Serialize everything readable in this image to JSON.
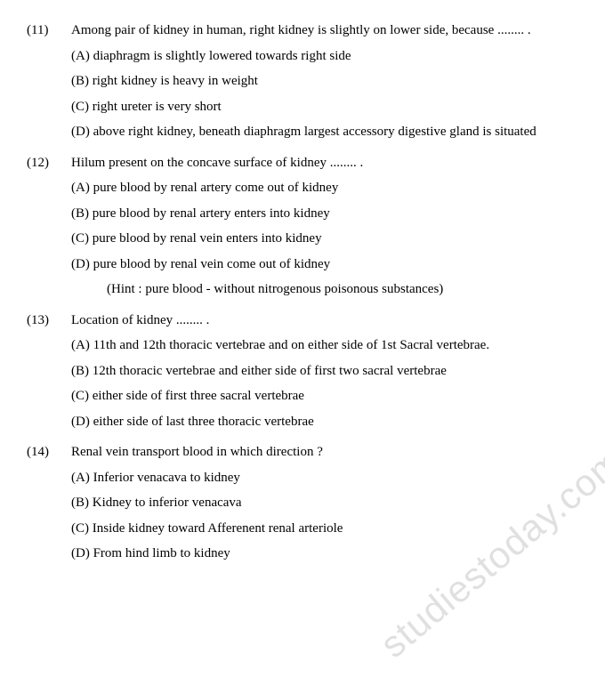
{
  "watermark": "studiestoday.com",
  "questions": [
    {
      "num": "(11)",
      "text": "Among pair of kidney in human, right kidney is slightly on lower side, because ........ .",
      "options": [
        "(A) diaphragm is slightly lowered towards right side",
        "(B) right kidney is heavy in weight",
        "(C) right ureter is very short",
        "(D) above right kidney, beneath diaphragm largest accessory digestive gland is situated"
      ]
    },
    {
      "num": "(12)",
      "text": "Hilum present on the concave surface of kidney ........ .",
      "options": [
        "(A) pure blood by renal artery come out of kidney",
        "(B) pure blood by renal artery enters into kidney",
        "(C) pure blood by renal vein enters into kidney",
        "(D) pure blood by renal vein come out of kidney"
      ],
      "hint": "(Hint : pure blood - without nitrogenous poisonous substances)"
    },
    {
      "num": "(13)",
      "text": "Location of kidney ........ .",
      "options": [
        "(A) 11th and 12th thoracic vertebrae and on either side of 1st Sacral vertebrae.",
        "(B) 12th thoracic vertebrae and either side of first two sacral vertebrae",
        "(C) either side of first three sacral vertebrae",
        "(D) either side of last three thoracic vertebrae"
      ]
    },
    {
      "num": "(14)",
      "text": "Renal vein transport blood in which direction ?",
      "options": [
        "(A) Inferior venacava to kidney",
        "(B) Kidney to inferior venacava",
        "(C) Inside kidney toward Afferenent renal arteriole",
        "(D) From hind limb to kidney"
      ]
    }
  ]
}
